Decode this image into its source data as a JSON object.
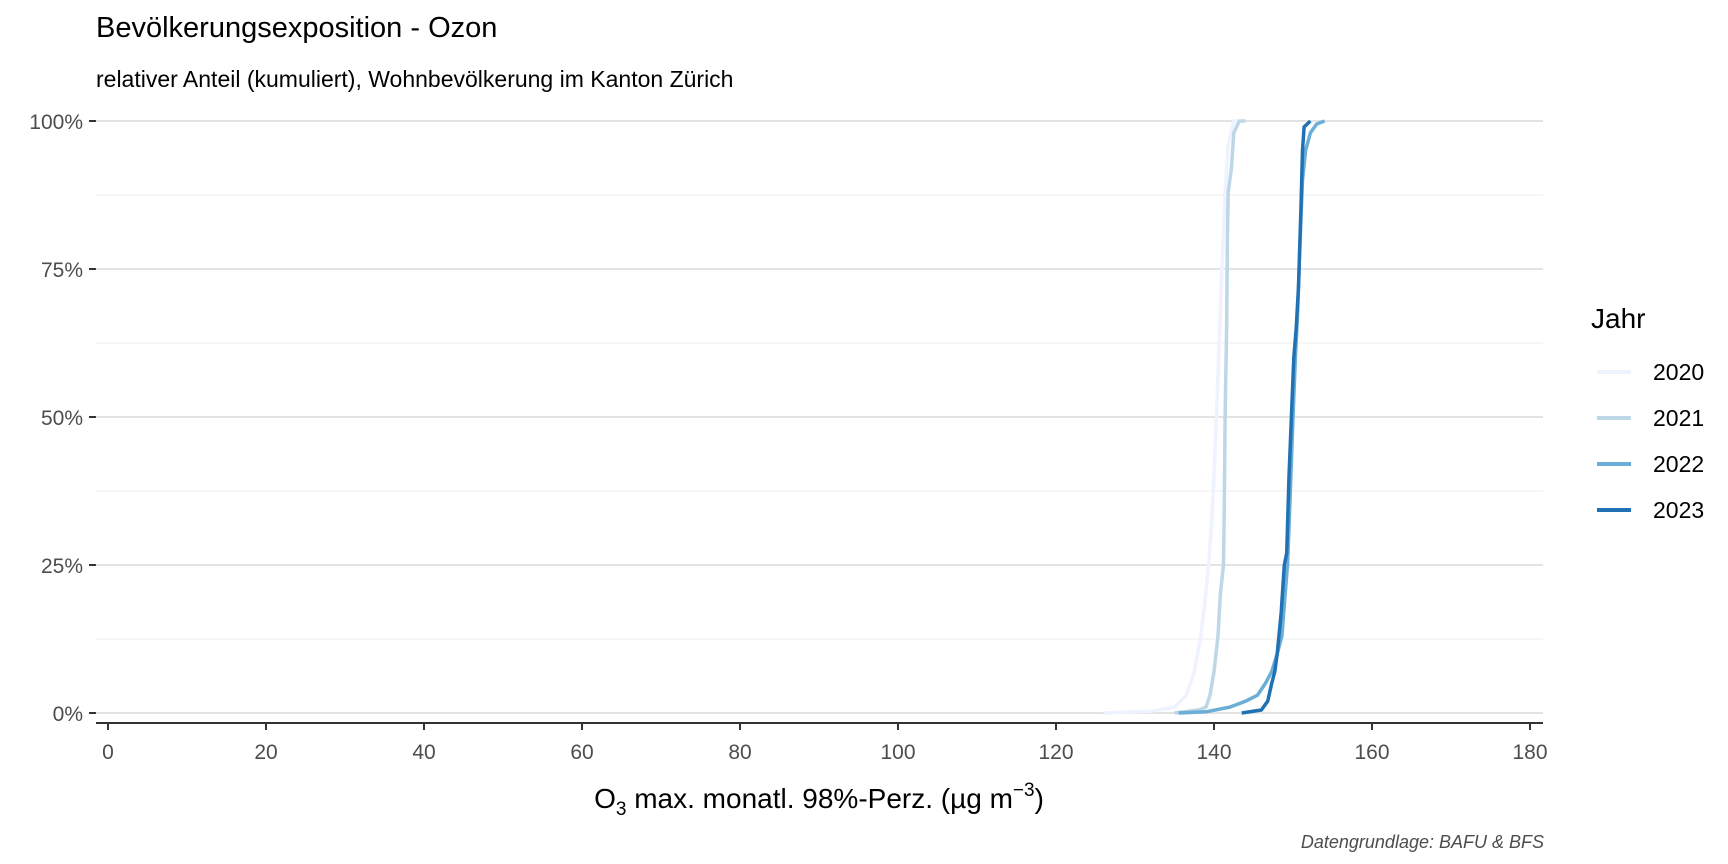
{
  "chart_data": {
    "type": "line",
    "title": "Bevölkerungsexposition - Ozon",
    "subtitle": "relativer Anteil (kumuliert), Wohnbevölkerung im Kanton Zürich",
    "xlabel_main": "O",
    "xlabel_sub": "3",
    "xlabel_rest": " max. monatl. 98%-Perz. (µg m",
    "xlabel_sup": "−3",
    "xlabel_close": ")",
    "ylabel": "",
    "xlim": [
      0,
      180
    ],
    "ylim": [
      0,
      1
    ],
    "x_ticks": [
      0,
      20,
      40,
      60,
      80,
      100,
      120,
      140,
      160,
      180
    ],
    "y_ticks": [
      0,
      0.25,
      0.5,
      0.75,
      1
    ],
    "y_tick_labels": [
      "0%",
      "25%",
      "50%",
      "75%",
      "100%"
    ],
    "grid": true,
    "legend_position": "right",
    "legend_title": "Jahr",
    "caption": "Datengrundlage: BAFU & BFS",
    "series": [
      {
        "name": "2020",
        "color": "#eff3ff",
        "points": [
          [
            126,
            0
          ],
          [
            132,
            0.003
          ],
          [
            135,
            0.01
          ],
          [
            136.5,
            0.03
          ],
          [
            137.5,
            0.07
          ],
          [
            138.2,
            0.12
          ],
          [
            138.8,
            0.18
          ],
          [
            139.3,
            0.25
          ],
          [
            139.7,
            0.32
          ],
          [
            140,
            0.4
          ],
          [
            140.3,
            0.5
          ],
          [
            140.6,
            0.6
          ],
          [
            141,
            0.75
          ],
          [
            141.4,
            0.88
          ],
          [
            141.8,
            0.96
          ],
          [
            142.5,
            1
          ],
          [
            143,
            1
          ]
        ]
      },
      {
        "name": "2021",
        "color": "#bdd7e7",
        "points": [
          [
            135,
            0
          ],
          [
            138,
            0.005
          ],
          [
            139,
            0.01
          ],
          [
            139.5,
            0.03
          ],
          [
            140,
            0.07
          ],
          [
            140.5,
            0.13
          ],
          [
            140.8,
            0.2
          ],
          [
            141.2,
            0.25
          ],
          [
            141.3,
            0.35
          ],
          [
            141.4,
            0.5
          ],
          [
            141.6,
            0.65
          ],
          [
            141.7,
            0.8
          ],
          [
            141.8,
            0.88
          ],
          [
            142.2,
            0.92
          ],
          [
            142.5,
            0.98
          ],
          [
            143.2,
            1
          ],
          [
            144,
            1
          ]
        ]
      },
      {
        "name": "2022",
        "color": "#6baed6",
        "points": [
          [
            135.5,
            0
          ],
          [
            139,
            0.002
          ],
          [
            142,
            0.01
          ],
          [
            144,
            0.02
          ],
          [
            145.5,
            0.03
          ],
          [
            146.5,
            0.05
          ],
          [
            147.3,
            0.07
          ],
          [
            148,
            0.1
          ],
          [
            148.6,
            0.13
          ],
          [
            149,
            0.2
          ],
          [
            149.3,
            0.25
          ],
          [
            149.6,
            0.35
          ],
          [
            150,
            0.5
          ],
          [
            150.3,
            0.6
          ],
          [
            150.6,
            0.68
          ],
          [
            150.9,
            0.8
          ],
          [
            151.2,
            0.9
          ],
          [
            151.6,
            0.95
          ],
          [
            152.2,
            0.98
          ],
          [
            153,
            0.995
          ],
          [
            154,
            1
          ]
        ]
      },
      {
        "name": "2023",
        "color": "#2171b5",
        "points": [
          [
            143.5,
            0
          ],
          [
            146,
            0.005
          ],
          [
            146.8,
            0.02
          ],
          [
            147.3,
            0.05
          ],
          [
            147.7,
            0.07
          ],
          [
            148,
            0.1
          ],
          [
            148.5,
            0.17
          ],
          [
            148.9,
            0.25
          ],
          [
            149.2,
            0.27
          ],
          [
            149.5,
            0.4
          ],
          [
            149.8,
            0.5
          ],
          [
            150.1,
            0.6
          ],
          [
            150.4,
            0.65
          ],
          [
            150.7,
            0.72
          ],
          [
            151,
            0.85
          ],
          [
            151.2,
            0.95
          ],
          [
            151.4,
            0.99
          ],
          [
            152.2,
            1
          ]
        ]
      }
    ]
  }
}
